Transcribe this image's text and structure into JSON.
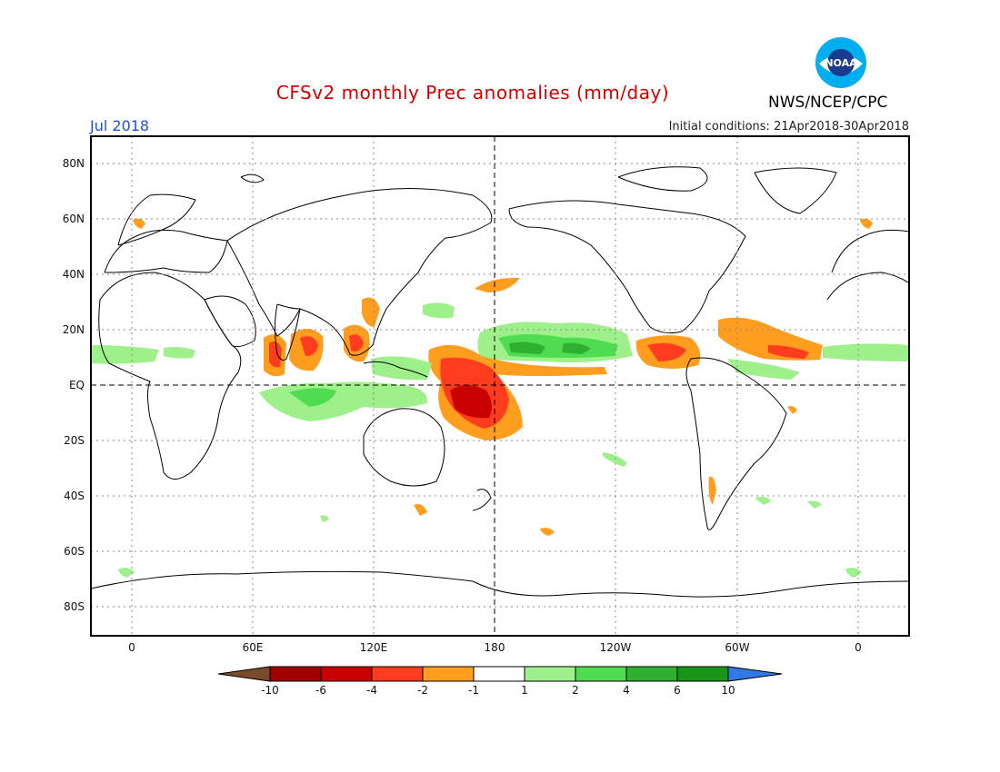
{
  "header": {
    "title": "CFSv2 monthly Prec anomalies (mm/day)",
    "agency": "NWS/NCEP/CPC",
    "logo_text": "NOAA",
    "month": "Jul 2018",
    "initial_conditions": "Initial conditions: 21Apr2018-30Apr2018"
  },
  "map": {
    "lat_labels": [
      "80N",
      "60N",
      "40N",
      "20N",
      "EQ",
      "20S",
      "40S",
      "60S",
      "80S"
    ],
    "lat_values": [
      80,
      60,
      40,
      20,
      0,
      -20,
      -40,
      -60,
      -80
    ],
    "lon_labels": [
      "0",
      "60E",
      "120E",
      "180",
      "120W",
      "60W",
      "0"
    ],
    "lon_values": [
      0,
      60,
      120,
      180,
      240,
      300,
      360
    ],
    "lon_range": [
      -20,
      385
    ],
    "lat_range": [
      -90,
      90
    ],
    "grid": "dotted",
    "reference_lines": [
      "equator",
      "dateline 180"
    ],
    "anomaly_regions": [
      {
        "name": "tropical-pacific-wet-band",
        "lon": [
          180,
          240
        ],
        "lat": [
          6,
          20
        ],
        "category": "2 to 4"
      },
      {
        "name": "warm-pool-dry",
        "lon": [
          155,
          185
        ],
        "lat": [
          -20,
          10
        ],
        "category": "-4 to -6"
      },
      {
        "name": "indian-ocean-wet",
        "lon": [
          80,
          125
        ],
        "lat": [
          -12,
          0
        ],
        "category": "2 to 4"
      },
      {
        "name": "arabian-sea-dry",
        "lon": [
          65,
          78
        ],
        "lat": [
          5,
          20
        ],
        "category": "-2 to -4"
      },
      {
        "name": "bay-of-bengal-dry",
        "lon": [
          83,
          96
        ],
        "lat": [
          10,
          20
        ],
        "category": "-2 to -4"
      },
      {
        "name": "tropical-atlantic-dry",
        "lon": [
          305,
          345
        ],
        "lat": [
          10,
          24
        ],
        "category": "-1 to -2"
      },
      {
        "name": "caribbean-dry",
        "lon": [
          275,
          295
        ],
        "lat": [
          8,
          18
        ],
        "category": "-2 to -4"
      },
      {
        "name": "atlantic-itcz-wet",
        "lon": [
          345,
          385
        ],
        "lat": [
          8,
          14
        ],
        "category": "1 to 2"
      }
    ]
  },
  "colorbar": {
    "labels": [
      "-10",
      "-6",
      "-4",
      "-2",
      "-1",
      "1",
      "2",
      "4",
      "6",
      "10"
    ],
    "colors": [
      "#7a4a2a",
      "#a00000",
      "#c80000",
      "#ff3c1e",
      "#ff9e1e",
      "#ffffff",
      "#9ef08a",
      "#50dc50",
      "#30b030",
      "#189618",
      "#3278e6"
    ]
  }
}
